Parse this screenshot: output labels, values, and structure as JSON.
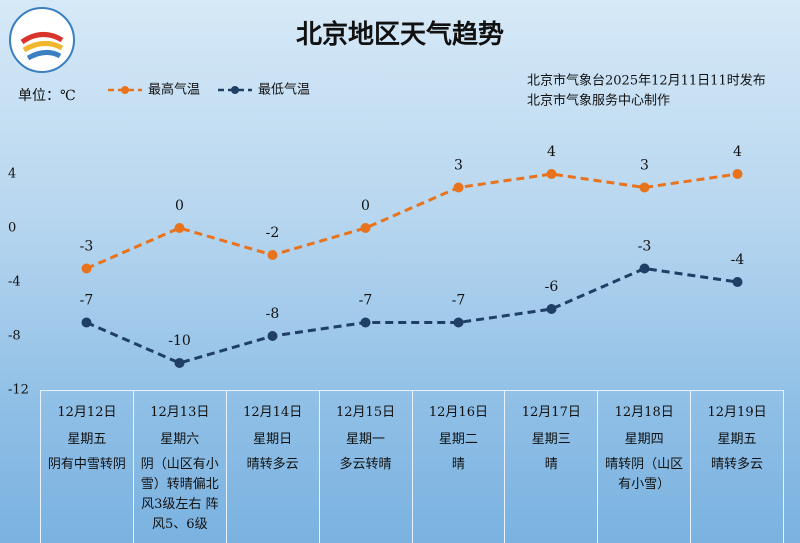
{
  "chart_data": {
    "type": "line",
    "title": "北京地区天气趋势",
    "unit_label": "单位：℃",
    "notes": [
      "北京市气象台2025年12月11日11时发布",
      "北京市气象服务中心制作"
    ],
    "categories": [
      "12月12日",
      "12月13日",
      "12月14日",
      "12月15日",
      "12月16日",
      "12月17日",
      "12月18日",
      "12月19日"
    ],
    "weekdays": [
      "星期五",
      "星期六",
      "星期日",
      "星期一",
      "星期二",
      "星期三",
      "星期四",
      "星期五"
    ],
    "weather": [
      "阴有中雪转阴",
      "阴（山区有小雪）转晴偏北风3级左右 阵风5、6级",
      "晴转多云",
      "多云转晴",
      "晴",
      "晴",
      "晴转阴（山区有小雪）",
      "晴转多云"
    ],
    "series": [
      {
        "name": "最高气温",
        "color": "#e8731c",
        "values": [
          -3,
          0,
          -2,
          0,
          3,
          4,
          3,
          4
        ]
      },
      {
        "name": "最低气温",
        "color": "#1f3f66",
        "values": [
          -7,
          -10,
          -8,
          -7,
          -7,
          -6,
          -3,
          -4
        ]
      }
    ],
    "ylim": [
      -12,
      8
    ],
    "yticks": [
      4,
      0,
      -4,
      -8,
      -12
    ]
  }
}
